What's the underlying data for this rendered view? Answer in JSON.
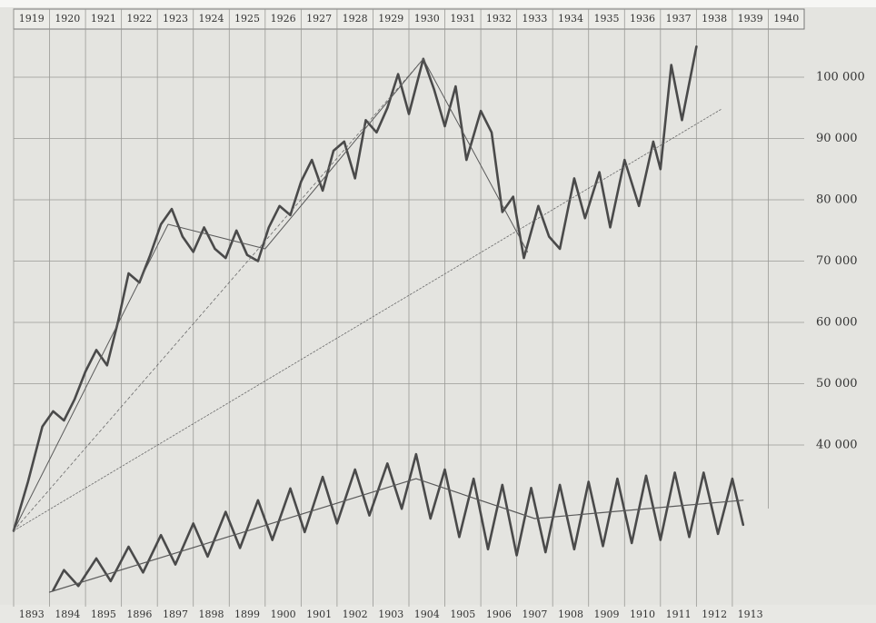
{
  "chart_data": {
    "type": "line",
    "xlim": [
      1919,
      1941
    ],
    "xticks": [
      1919,
      1920,
      1921,
      1922,
      1923,
      1924,
      1925,
      1926,
      1927,
      1928,
      1929,
      1930,
      1931,
      1932,
      1933,
      1934,
      1935,
      1936,
      1937,
      1938,
      1939,
      1940
    ],
    "x2lim": [
      1893,
      1915
    ],
    "x2ticks": [
      1893,
      1894,
      1895,
      1896,
      1897,
      1898,
      1899,
      1900,
      1901,
      1902,
      1903,
      1904,
      1905,
      1906,
      1907,
      1908,
      1909,
      1910,
      1911,
      1912,
      1913
    ],
    "ylim": [
      14000,
      110000
    ],
    "yticks": [
      {
        "value": 40000,
        "label": "40 000"
      },
      {
        "value": 50000,
        "label": "50 000"
      },
      {
        "value": 60000,
        "label": "60 000"
      },
      {
        "value": 70000,
        "label": "70 000"
      },
      {
        "value": 80000,
        "label": "80 000"
      },
      {
        "value": 90000,
        "label": "90 000"
      },
      {
        "value": 100000,
        "label": "100 000"
      }
    ],
    "grid": true,
    "series": [
      {
        "color": "#4a4a4a",
        "width": 2.6,
        "xaxis": "top",
        "x": [
          1919.0,
          1919.4,
          1919.8,
          1920.1,
          1920.4,
          1920.7,
          1921.0,
          1921.3,
          1921.6,
          1921.9,
          1922.2,
          1922.5,
          1922.8,
          1923.1,
          1923.4,
          1923.7,
          1924.0,
          1924.3,
          1924.6,
          1924.9,
          1925.2,
          1925.5,
          1925.8,
          1926.1,
          1926.4,
          1926.7,
          1927.0,
          1927.3,
          1927.6,
          1927.9,
          1928.2,
          1928.5,
          1928.8,
          1929.1,
          1929.4,
          1929.7,
          1930.0,
          1930.4,
          1930.7,
          1931.0,
          1931.3,
          1931.6,
          1932.0,
          1932.3,
          1932.6,
          1932.9,
          1933.2,
          1933.6,
          1933.9,
          1934.2,
          1934.6,
          1934.9,
          1935.3,
          1935.6,
          1936.0,
          1936.4,
          1936.8,
          1937.0,
          1937.3,
          1937.6,
          1938.0
        ],
        "values": [
          26000,
          34000,
          43000,
          45500,
          44000,
          47500,
          52000,
          55500,
          53000,
          60000,
          68000,
          66500,
          71000,
          76000,
          78500,
          74000,
          71500,
          75500,
          72000,
          70500,
          75000,
          71000,
          70000,
          75500,
          79000,
          77500,
          83000,
          86500,
          81500,
          88000,
          89500,
          83500,
          93000,
          91000,
          95000,
          100500,
          94000,
          103000,
          98000,
          92000,
          98500,
          86500,
          94500,
          91000,
          78000,
          80500,
          70500,
          79000,
          74000,
          72000,
          83500,
          77000,
          84500,
          75500,
          86500,
          79000,
          89500,
          85000,
          102000,
          93000,
          105000
        ]
      },
      {
        "color": "#4a4a4a",
        "width": 2.6,
        "xaxis": "bottom",
        "x": [
          1894.1,
          1894.4,
          1894.8,
          1895.3,
          1895.7,
          1896.2,
          1896.6,
          1897.1,
          1897.5,
          1898.0,
          1898.4,
          1898.9,
          1899.3,
          1899.8,
          1900.2,
          1900.7,
          1901.1,
          1901.6,
          1902.0,
          1902.5,
          1902.9,
          1903.4,
          1903.8,
          1904.2,
          1904.6,
          1905.0,
          1905.4,
          1905.8,
          1906.2,
          1906.6,
          1907.0,
          1907.4,
          1907.8,
          1908.2,
          1908.6,
          1909.0,
          1909.4,
          1909.8,
          1910.2,
          1910.6,
          1911.0,
          1911.4,
          1911.8,
          1912.2,
          1912.6,
          1913.0,
          1913.3
        ],
        "values": [
          16300,
          19600,
          17000,
          21500,
          17800,
          23400,
          19200,
          25300,
          20500,
          27200,
          21800,
          29100,
          23200,
          31000,
          24500,
          32900,
          25800,
          34800,
          27200,
          36000,
          28500,
          37000,
          29600,
          38500,
          28000,
          36000,
          25000,
          34500,
          23000,
          33500,
          22000,
          33000,
          22500,
          33500,
          23000,
          34000,
          23500,
          34500,
          24000,
          35000,
          24500,
          35500,
          25000,
          35500,
          25500,
          34500,
          27000
        ]
      },
      {
        "color": "#5a5a5a",
        "width": 1,
        "xaxis": "top",
        "x": [
          1919.0,
          1923.3,
          1926.0,
          1930.4,
          1933.3
        ],
        "values": [
          26000,
          76000,
          72000,
          103000,
          71500
        ]
      },
      {
        "color": "#6a6a6a",
        "width": 0.8,
        "dash": "3 3",
        "xaxis": "top",
        "x": [
          1919.0,
          1930.4
        ],
        "values": [
          26000,
          103000
        ]
      },
      {
        "color": "#6a6a6a",
        "width": 0.8,
        "dash": "2 2",
        "xaxis": "top",
        "x": [
          1919.0,
          1938.7
        ],
        "values": [
          26000,
          94800
        ]
      },
      {
        "color": "#5a5a5a",
        "width": 1.2,
        "xaxis": "bottom",
        "x": [
          1894.0,
          1904.2,
          1907.5,
          1913.3
        ],
        "values": [
          16000,
          34500,
          28000,
          31000
        ]
      }
    ]
  }
}
